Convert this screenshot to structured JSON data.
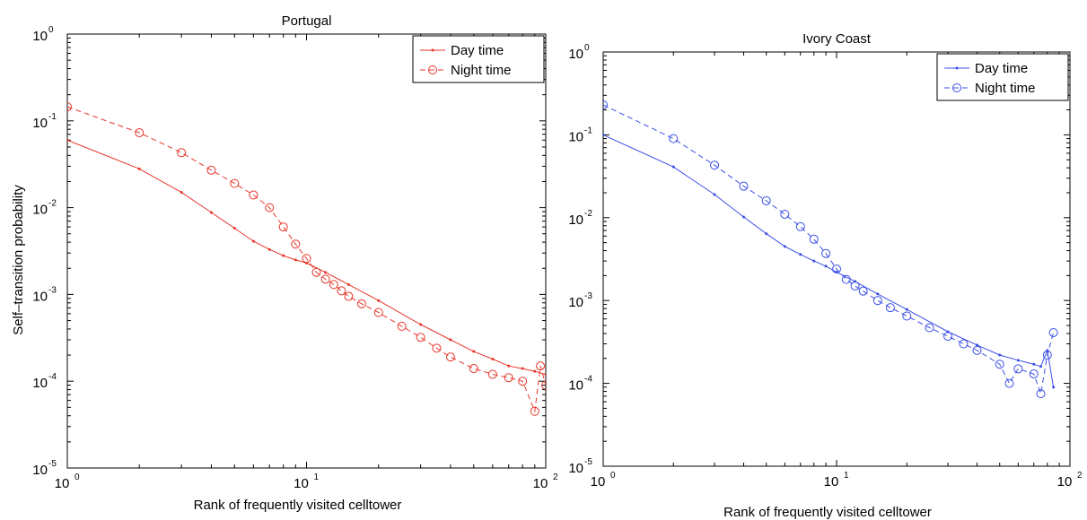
{
  "chart_data": [
    {
      "type": "line",
      "title": "Portugal",
      "xlabel": "Rank of frequently visited celltower",
      "ylabel": "Self–transition probability",
      "x_scale": "log",
      "y_scale": "log",
      "xlim": [
        1,
        100
      ],
      "ylim": [
        1e-05,
        1
      ],
      "x_ticks": [
        {
          "base": "10",
          "exp": "0"
        },
        {
          "base": "10",
          "exp": "1"
        },
        {
          "base": "10",
          "exp": "2"
        }
      ],
      "y_ticks": [
        {
          "base": "10",
          "exp": "0"
        },
        {
          "base": "10",
          "exp": "-1"
        },
        {
          "base": "10",
          "exp": "-2"
        },
        {
          "base": "10",
          "exp": "-3"
        },
        {
          "base": "10",
          "exp": "-4"
        },
        {
          "base": "10",
          "exp": "-5"
        }
      ],
      "grid": false,
      "legend_position": "top-right",
      "color": "#e8352a",
      "series": [
        {
          "name": "Day time",
          "style": "solid-dot",
          "x": [
            1,
            2,
            3,
            4,
            5,
            6,
            7,
            8,
            9,
            10,
            12,
            15,
            20,
            30,
            40,
            50,
            60,
            70,
            80,
            90,
            100
          ],
          "y": [
            0.06,
            0.028,
            0.015,
            0.0088,
            0.0058,
            0.0041,
            0.0033,
            0.0028,
            0.0025,
            0.0023,
            0.0018,
            0.0013,
            0.00085,
            0.00045,
            0.0003,
            0.00022,
            0.00018,
            0.00015,
            0.00014,
            0.00013,
            0.00012
          ]
        },
        {
          "name": "Night time",
          "style": "dashed-circle",
          "x": [
            1,
            2,
            3,
            4,
            5,
            6,
            7,
            8,
            9,
            10,
            11,
            12,
            13,
            14,
            15,
            17,
            20,
            25,
            30,
            35,
            40,
            50,
            60,
            70,
            80,
            90,
            95,
            100
          ],
          "y": [
            0.145,
            0.073,
            0.043,
            0.027,
            0.019,
            0.014,
            0.01,
            0.006,
            0.0038,
            0.0026,
            0.0018,
            0.0015,
            0.0013,
            0.0011,
            0.00095,
            0.00078,
            0.00062,
            0.00043,
            0.00032,
            0.00024,
            0.00019,
            0.00014,
            0.00012,
            0.00011,
            0.0001,
            4.5e-05,
            0.00015,
            9e-05
          ]
        }
      ]
    },
    {
      "type": "line",
      "title": "Ivory Coast",
      "xlabel": "Rank of frequently visited celltower",
      "ylabel": "",
      "x_scale": "log",
      "y_scale": "log",
      "xlim": [
        1,
        100
      ],
      "ylim": [
        1e-05,
        1
      ],
      "x_ticks": [
        {
          "base": "10",
          "exp": "0"
        },
        {
          "base": "10",
          "exp": "1"
        },
        {
          "base": "10",
          "exp": "2"
        }
      ],
      "y_ticks": [
        {
          "base": "10",
          "exp": "0"
        },
        {
          "base": "10",
          "exp": "-1"
        },
        {
          "base": "10",
          "exp": "-2"
        },
        {
          "base": "10",
          "exp": "-3"
        },
        {
          "base": "10",
          "exp": "-4"
        },
        {
          "base": "10",
          "exp": "-5"
        }
      ],
      "grid": false,
      "legend_position": "top-right",
      "color": "#3a4fe6",
      "series": [
        {
          "name": "Day time",
          "style": "solid-dot",
          "x": [
            1,
            2,
            3,
            4,
            5,
            6,
            7,
            8,
            9,
            10,
            12,
            15,
            20,
            30,
            40,
            50,
            60,
            70,
            75,
            80,
            85
          ],
          "y": [
            0.1,
            0.041,
            0.019,
            0.0102,
            0.0064,
            0.0045,
            0.0036,
            0.003,
            0.0026,
            0.0022,
            0.0017,
            0.0012,
            0.00078,
            0.00042,
            0.00029,
            0.00022,
            0.00019,
            0.00017,
            0.00016,
            0.00025,
            9e-05
          ]
        },
        {
          "name": "Night time",
          "style": "dashed-circle",
          "x": [
            1,
            2,
            3,
            4,
            5,
            6,
            7,
            8,
            9,
            10,
            11,
            12,
            13,
            15,
            17,
            20,
            25,
            30,
            35,
            40,
            50,
            55,
            60,
            70,
            75,
            80,
            85
          ],
          "y": [
            0.23,
            0.09,
            0.043,
            0.024,
            0.016,
            0.011,
            0.0078,
            0.0055,
            0.0037,
            0.0024,
            0.0018,
            0.0015,
            0.0013,
            0.001,
            0.00082,
            0.00065,
            0.00047,
            0.00037,
            0.0003,
            0.00025,
            0.00017,
            0.0001,
            0.00015,
            0.00013,
            7.5e-05,
            0.00022,
            0.00041
          ]
        }
      ]
    }
  ]
}
